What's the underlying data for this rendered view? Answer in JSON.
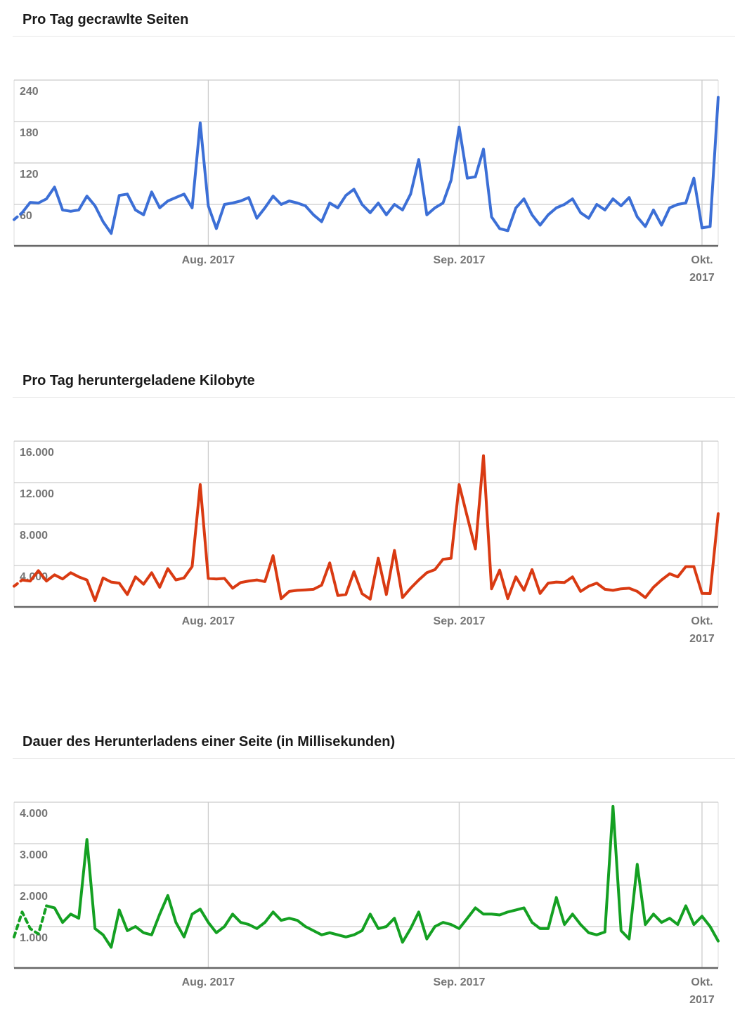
{
  "style": {
    "background": "#ffffff",
    "grid_color": "#cccccc",
    "edge_color": "#dcdcdc",
    "axis_color": "#666666",
    "label_color": "#757575",
    "title_color": "#1a1a1a",
    "divider_color": "#e6e6e6"
  },
  "chart_data": [
    {
      "type": "line",
      "title": "Pro Tag gecrawlte Seiten",
      "color": "#3c6fd6",
      "legend_position": "none",
      "grid": true,
      "y_max": 240,
      "y_min": 0,
      "y_ticks": [
        {
          "value": 240,
          "label": "240"
        },
        {
          "value": 180,
          "label": "180"
        },
        {
          "value": 120,
          "label": "120"
        },
        {
          "value": 60,
          "label": "60"
        }
      ],
      "x_ticks": [
        {
          "index": 24,
          "lines": [
            "Aug. 2017"
          ]
        },
        {
          "index": 55,
          "lines": [
            "Sep. 2017"
          ]
        },
        {
          "index": 85,
          "lines": [
            "Okt.",
            "2017"
          ]
        }
      ],
      "dashed_until": 1,
      "values": [
        38,
        48,
        63,
        62,
        68,
        85,
        52,
        50,
        52,
        72,
        58,
        35,
        18,
        73,
        75,
        52,
        45,
        78,
        55,
        65,
        70,
        75,
        55,
        178,
        58,
        25,
        60,
        62,
        65,
        70,
        40,
        55,
        72,
        60,
        65,
        62,
        58,
        45,
        35,
        62,
        55,
        73,
        82,
        60,
        48,
        62,
        45,
        60,
        52,
        75,
        125,
        45,
        55,
        62,
        95,
        172,
        98,
        100,
        140,
        42,
        25,
        22,
        55,
        68,
        45,
        30,
        45,
        55,
        60,
        68,
        48,
        40,
        60,
        52,
        68,
        58,
        70,
        42,
        28,
        52,
        30,
        55,
        60,
        62,
        98,
        26,
        28,
        215
      ]
    },
    {
      "type": "line",
      "title": "Pro Tag heruntergeladene Kilobyte",
      "color": "#d93a12",
      "legend_position": "none",
      "grid": true,
      "y_max": 16000,
      "y_min": 0,
      "y_ticks": [
        {
          "value": 16000,
          "label": "16.000"
        },
        {
          "value": 12000,
          "label": "12.000"
        },
        {
          "value": 8000,
          "label": "8.000"
        },
        {
          "value": 4000,
          "label": "4.000"
        }
      ],
      "x_ticks": [
        {
          "index": 24,
          "lines": [
            "Aug. 2017"
          ]
        },
        {
          "index": 55,
          "lines": [
            "Sep. 2017"
          ]
        },
        {
          "index": 85,
          "lines": [
            "Okt.",
            "2017"
          ]
        }
      ],
      "dashed_until": 1,
      "values": [
        2000,
        2600,
        2500,
        3500,
        2500,
        3100,
        2700,
        3300,
        2900,
        2600,
        600,
        2800,
        2400,
        2300,
        1200,
        2900,
        2200,
        3300,
        1900,
        3700,
        2600,
        2800,
        3900,
        11800,
        2750,
        2700,
        2750,
        1800,
        2350,
        2500,
        2600,
        2450,
        4950,
        800,
        1500,
        1600,
        1650,
        1700,
        2100,
        4250,
        1100,
        1200,
        3400,
        1280,
        750,
        4700,
        1200,
        5450,
        900,
        1800,
        2600,
        3300,
        3600,
        4600,
        4700,
        11800,
        8700,
        5600,
        14600,
        1750,
        3550,
        800,
        2900,
        1600,
        3600,
        1300,
        2300,
        2400,
        2350,
        2900,
        1500,
        2000,
        2300,
        1700,
        1600,
        1750,
        1800,
        1500,
        900,
        1900,
        2600,
        3200,
        2900,
        3890,
        3890,
        1300,
        1290,
        9000
      ]
    },
    {
      "type": "line",
      "title": "Dauer des Herunterladens einer Seite (in Millisekunden)",
      "color": "#14a022",
      "legend_position": "none",
      "grid": true,
      "y_max": 4000,
      "y_min": 0,
      "y_ticks": [
        {
          "value": 4000,
          "label": "4.000"
        },
        {
          "value": 3000,
          "label": "3.000"
        },
        {
          "value": 2000,
          "label": "2.000"
        },
        {
          "value": 1000,
          "label": "1.000"
        }
      ],
      "x_ticks": [
        {
          "index": 24,
          "lines": [
            "Aug. 2017"
          ]
        },
        {
          "index": 55,
          "lines": [
            "Sep. 2017"
          ]
        },
        {
          "index": 85,
          "lines": [
            "Okt.",
            "2017"
          ]
        }
      ],
      "dashed_until": 4,
      "values": [
        750,
        1350,
        950,
        820,
        1500,
        1450,
        1100,
        1300,
        1200,
        3100,
        950,
        800,
        500,
        1400,
        900,
        1000,
        850,
        800,
        1300,
        1750,
        1100,
        750,
        1300,
        1420,
        1100,
        850,
        1000,
        1300,
        1100,
        1050,
        950,
        1100,
        1350,
        1150,
        1200,
        1150,
        1000,
        900,
        800,
        850,
        800,
        750,
        800,
        900,
        1300,
        950,
        1000,
        1200,
        620,
        950,
        1350,
        700,
        1000,
        1100,
        1050,
        950,
        1200,
        1450,
        1300,
        1300,
        1280,
        1350,
        1400,
        1450,
        1100,
        950,
        950,
        1700,
        1050,
        1300,
        1050,
        850,
        800,
        870,
        3900,
        900,
        700,
        2500,
        1050,
        1300,
        1100,
        1200,
        1050,
        1500,
        1050,
        1250,
        1000,
        650
      ]
    }
  ]
}
